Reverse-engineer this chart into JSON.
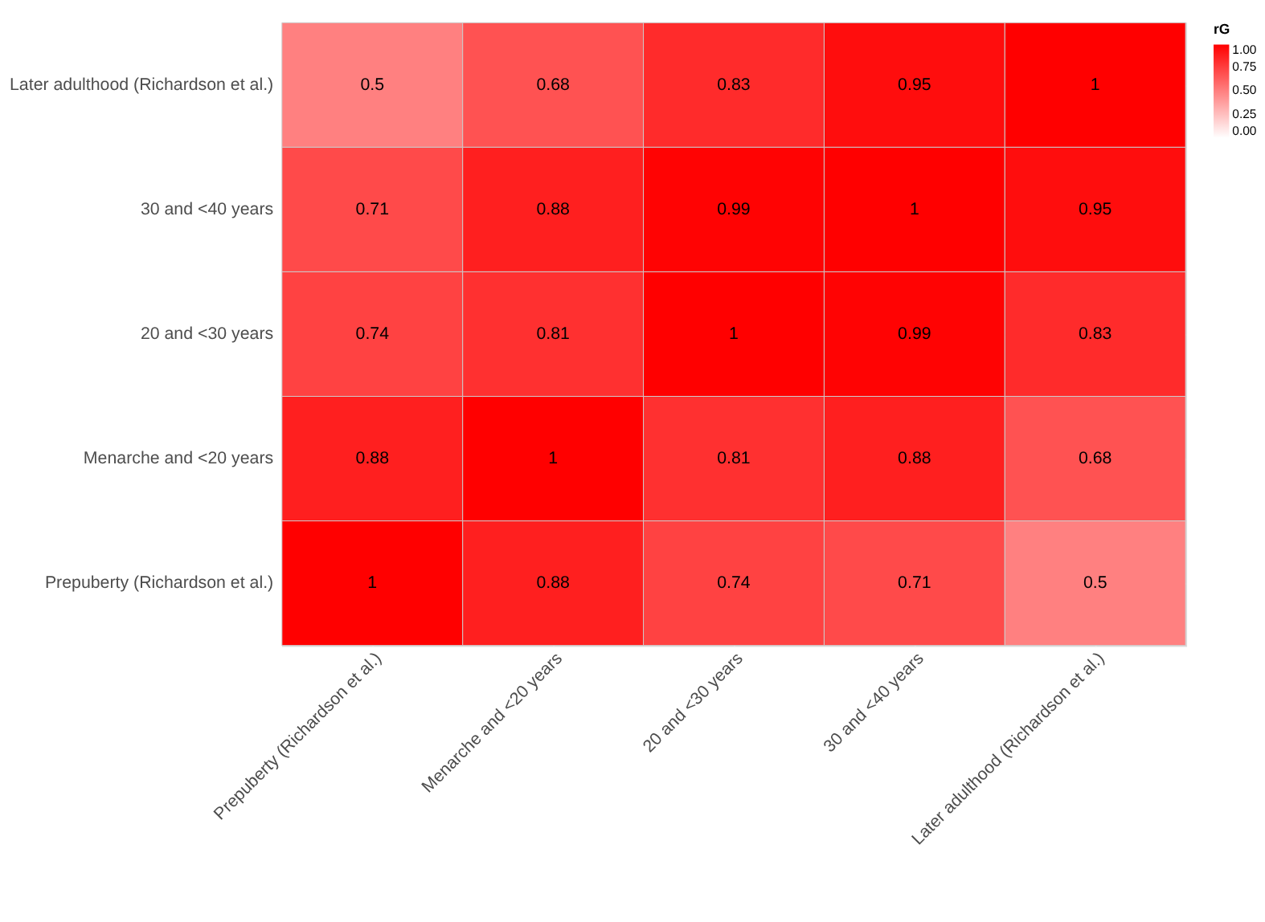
{
  "chart_data": {
    "type": "heatmap",
    "categories": [
      "Prepuberty (Richardson et al.)",
      "Menarche and <20 years",
      "20 and <30 years",
      "30 and <40 years",
      "Later adulthood (Richardson et al.)"
    ],
    "y_categories": [
      "Later adulthood (Richardson et al.)",
      "30 and <40 years",
      "20 and <30 years",
      "Menarche and <20 years",
      "Prepuberty (Richardson et al.)"
    ],
    "cells": [
      [
        0.5,
        0.68,
        0.83,
        0.95,
        1
      ],
      [
        0.71,
        0.88,
        0.99,
        1,
        0.95
      ],
      [
        0.74,
        0.81,
        1,
        0.99,
        0.83
      ],
      [
        0.88,
        1,
        0.81,
        0.88,
        0.68
      ],
      [
        1,
        0.88,
        0.74,
        0.71,
        0.5
      ]
    ],
    "clabel": "rG",
    "clim": [
      0,
      1
    ],
    "cticks": [
      {
        "value": 0,
        "label": "0.00"
      },
      {
        "value": 0.25,
        "label": "0.25"
      },
      {
        "value": 0.5,
        "label": "0.50"
      },
      {
        "value": 0.75,
        "label": "0.75"
      },
      {
        "value": 1,
        "label": "1.00"
      }
    ],
    "data_labels": true,
    "grid": true
  }
}
